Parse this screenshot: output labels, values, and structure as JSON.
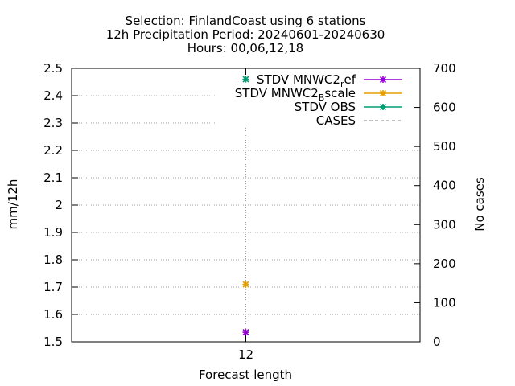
{
  "chart_data": {
    "type": "scatter",
    "title_lines": [
      "Selection: FinlandCoast using     6 stations",
      "12h Precipitation    Period: 20240601-20240630",
      "Hours: 00,06,12,18"
    ],
    "xlabel": "Forecast length",
    "ylabel": "mm/12h",
    "y2label": "No cases",
    "categories": [
      "12"
    ],
    "ylim": [
      1.5,
      2.5
    ],
    "yticks": [
      "1.5",
      "1.6",
      "1.7",
      "1.8",
      "1.9",
      "2",
      "2.1",
      "2.2",
      "2.3",
      "2.4",
      "2.5"
    ],
    "y2lim": [
      0,
      700
    ],
    "y2ticks": [
      "0",
      "100",
      "200",
      "300",
      "400",
      "500",
      "600",
      "700"
    ],
    "grid": true,
    "legend_position": "top-right",
    "series": [
      {
        "name": "STDV MNWC2",
        "name_sub": "r",
        "name_tail": "ef",
        "axis": "y",
        "color": "#9400d3",
        "style": "line-points",
        "values": [
          1.535
        ]
      },
      {
        "name": "STDV MNWC2",
        "name_sub": "B",
        "name_tail": "scale",
        "axis": "y",
        "color": "#e69f00",
        "style": "line-points",
        "values": [
          1.71
        ]
      },
      {
        "name": "STDV OBS",
        "axis": "y",
        "color": "#009e73",
        "style": "line-points",
        "values": [
          2.46
        ]
      },
      {
        "name": "CASES",
        "axis": "y2",
        "color": "#808080",
        "style": "dashed",
        "values": []
      }
    ]
  }
}
